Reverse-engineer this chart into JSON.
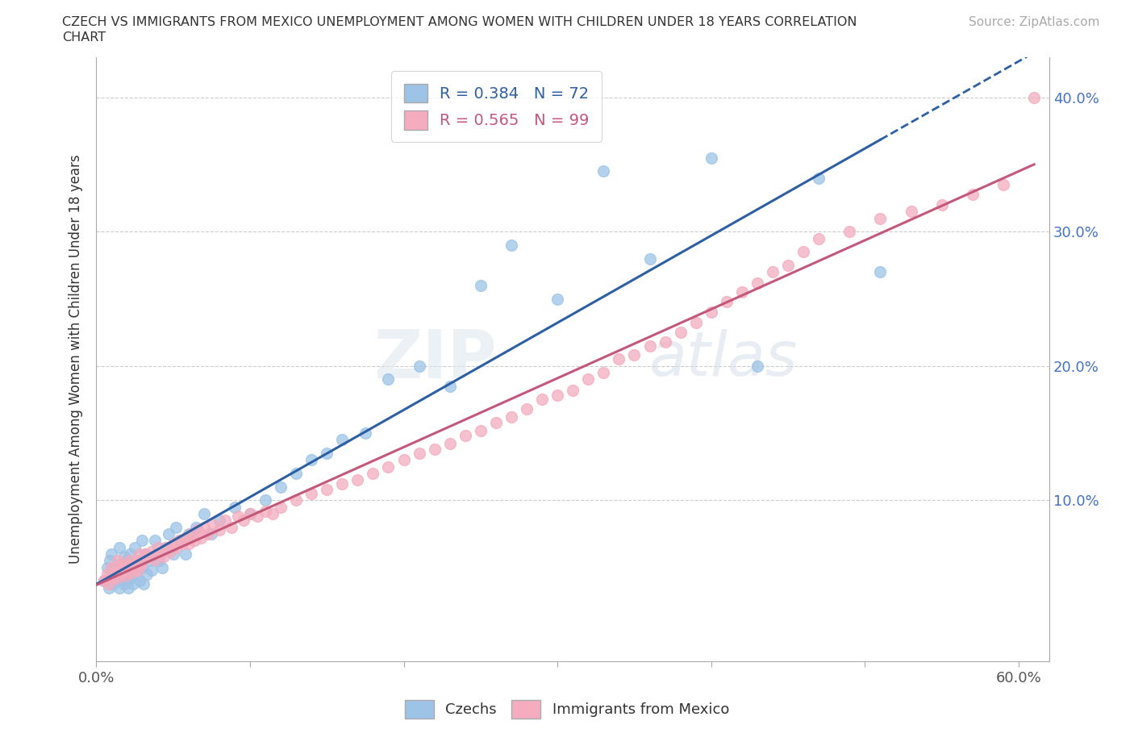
{
  "title_line1": "CZECH VS IMMIGRANTS FROM MEXICO UNEMPLOYMENT AMONG WOMEN WITH CHILDREN UNDER 18 YEARS CORRELATION",
  "title_line2": "CHART",
  "source": "Source: ZipAtlas.com",
  "ylabel": "Unemployment Among Women with Children Under 18 years",
  "xlim": [
    0.0,
    0.62
  ],
  "ylim": [
    -0.02,
    0.43
  ],
  "czech_color": "#9DC3E6",
  "mexico_color": "#F4ACBE",
  "czech_line_color": "#2E5FA3",
  "mexico_line_color": "#C4587A",
  "czech_R": 0.384,
  "czech_N": 72,
  "mexico_R": 0.565,
  "mexico_N": 99,
  "watermark": "ZIPatlas",
  "right_yticks": [
    0.1,
    0.2,
    0.3,
    0.4
  ],
  "right_ytick_labels": [
    "10.0%",
    "20.0%",
    "30.0%",
    "40.0%"
  ],
  "xtick_positions": [
    0.0,
    0.1,
    0.2,
    0.3,
    0.4,
    0.5,
    0.6
  ],
  "xtick_show_ends_only": true,
  "czech_x": [
    0.005,
    0.007,
    0.008,
    0.009,
    0.01,
    0.01,
    0.011,
    0.012,
    0.013,
    0.014,
    0.015,
    0.015,
    0.016,
    0.017,
    0.018,
    0.018,
    0.019,
    0.02,
    0.02,
    0.021,
    0.022,
    0.022,
    0.023,
    0.024,
    0.025,
    0.025,
    0.026,
    0.027,
    0.028,
    0.03,
    0.03,
    0.031,
    0.032,
    0.033,
    0.035,
    0.036,
    0.038,
    0.04,
    0.041,
    0.043,
    0.045,
    0.047,
    0.05,
    0.052,
    0.055,
    0.058,
    0.06,
    0.065,
    0.07,
    0.075,
    0.08,
    0.09,
    0.1,
    0.11,
    0.12,
    0.13,
    0.14,
    0.15,
    0.16,
    0.175,
    0.19,
    0.21,
    0.23,
    0.25,
    0.27,
    0.3,
    0.33,
    0.36,
    0.4,
    0.43,
    0.47,
    0.51
  ],
  "czech_y": [
    0.04,
    0.05,
    0.035,
    0.055,
    0.045,
    0.06,
    0.038,
    0.048,
    0.042,
    0.052,
    0.035,
    0.065,
    0.04,
    0.05,
    0.038,
    0.058,
    0.045,
    0.04,
    0.055,
    0.035,
    0.042,
    0.06,
    0.048,
    0.038,
    0.05,
    0.065,
    0.045,
    0.055,
    0.04,
    0.05,
    0.07,
    0.038,
    0.06,
    0.045,
    0.055,
    0.048,
    0.07,
    0.06,
    0.055,
    0.05,
    0.065,
    0.075,
    0.06,
    0.08,
    0.07,
    0.06,
    0.075,
    0.08,
    0.09,
    0.075,
    0.085,
    0.095,
    0.09,
    0.1,
    0.11,
    0.12,
    0.13,
    0.135,
    0.145,
    0.15,
    0.19,
    0.2,
    0.185,
    0.26,
    0.29,
    0.25,
    0.345,
    0.28,
    0.355,
    0.2,
    0.34,
    0.27
  ],
  "mexico_x": [
    0.005,
    0.007,
    0.008,
    0.009,
    0.01,
    0.011,
    0.012,
    0.013,
    0.014,
    0.015,
    0.016,
    0.017,
    0.018,
    0.019,
    0.02,
    0.021,
    0.022,
    0.023,
    0.024,
    0.025,
    0.026,
    0.027,
    0.028,
    0.029,
    0.03,
    0.032,
    0.034,
    0.036,
    0.038,
    0.04,
    0.042,
    0.044,
    0.046,
    0.048,
    0.05,
    0.052,
    0.054,
    0.056,
    0.058,
    0.06,
    0.062,
    0.064,
    0.066,
    0.068,
    0.07,
    0.073,
    0.076,
    0.08,
    0.084,
    0.088,
    0.092,
    0.096,
    0.1,
    0.105,
    0.11,
    0.115,
    0.12,
    0.13,
    0.14,
    0.15,
    0.16,
    0.17,
    0.18,
    0.19,
    0.2,
    0.21,
    0.22,
    0.23,
    0.24,
    0.25,
    0.26,
    0.27,
    0.28,
    0.29,
    0.3,
    0.31,
    0.32,
    0.33,
    0.34,
    0.35,
    0.36,
    0.37,
    0.38,
    0.39,
    0.4,
    0.41,
    0.42,
    0.43,
    0.44,
    0.45,
    0.46,
    0.47,
    0.49,
    0.51,
    0.53,
    0.55,
    0.57,
    0.59,
    0.61
  ],
  "mexico_y": [
    0.04,
    0.045,
    0.038,
    0.042,
    0.05,
    0.044,
    0.048,
    0.042,
    0.055,
    0.046,
    0.052,
    0.046,
    0.05,
    0.044,
    0.052,
    0.048,
    0.055,
    0.046,
    0.052,
    0.05,
    0.055,
    0.048,
    0.06,
    0.052,
    0.055,
    0.06,
    0.058,
    0.062,
    0.056,
    0.065,
    0.06,
    0.058,
    0.065,
    0.062,
    0.068,
    0.065,
    0.07,
    0.068,
    0.072,
    0.068,
    0.075,
    0.07,
    0.078,
    0.072,
    0.08,
    0.075,
    0.082,
    0.078,
    0.085,
    0.08,
    0.088,
    0.085,
    0.09,
    0.088,
    0.092,
    0.09,
    0.095,
    0.1,
    0.105,
    0.108,
    0.112,
    0.115,
    0.12,
    0.125,
    0.13,
    0.135,
    0.138,
    0.142,
    0.148,
    0.152,
    0.158,
    0.162,
    0.168,
    0.175,
    0.178,
    0.182,
    0.19,
    0.195,
    0.205,
    0.208,
    0.215,
    0.218,
    0.225,
    0.232,
    0.24,
    0.248,
    0.255,
    0.262,
    0.27,
    0.275,
    0.285,
    0.295,
    0.3,
    0.31,
    0.315,
    0.32,
    0.328,
    0.335,
    0.4
  ]
}
